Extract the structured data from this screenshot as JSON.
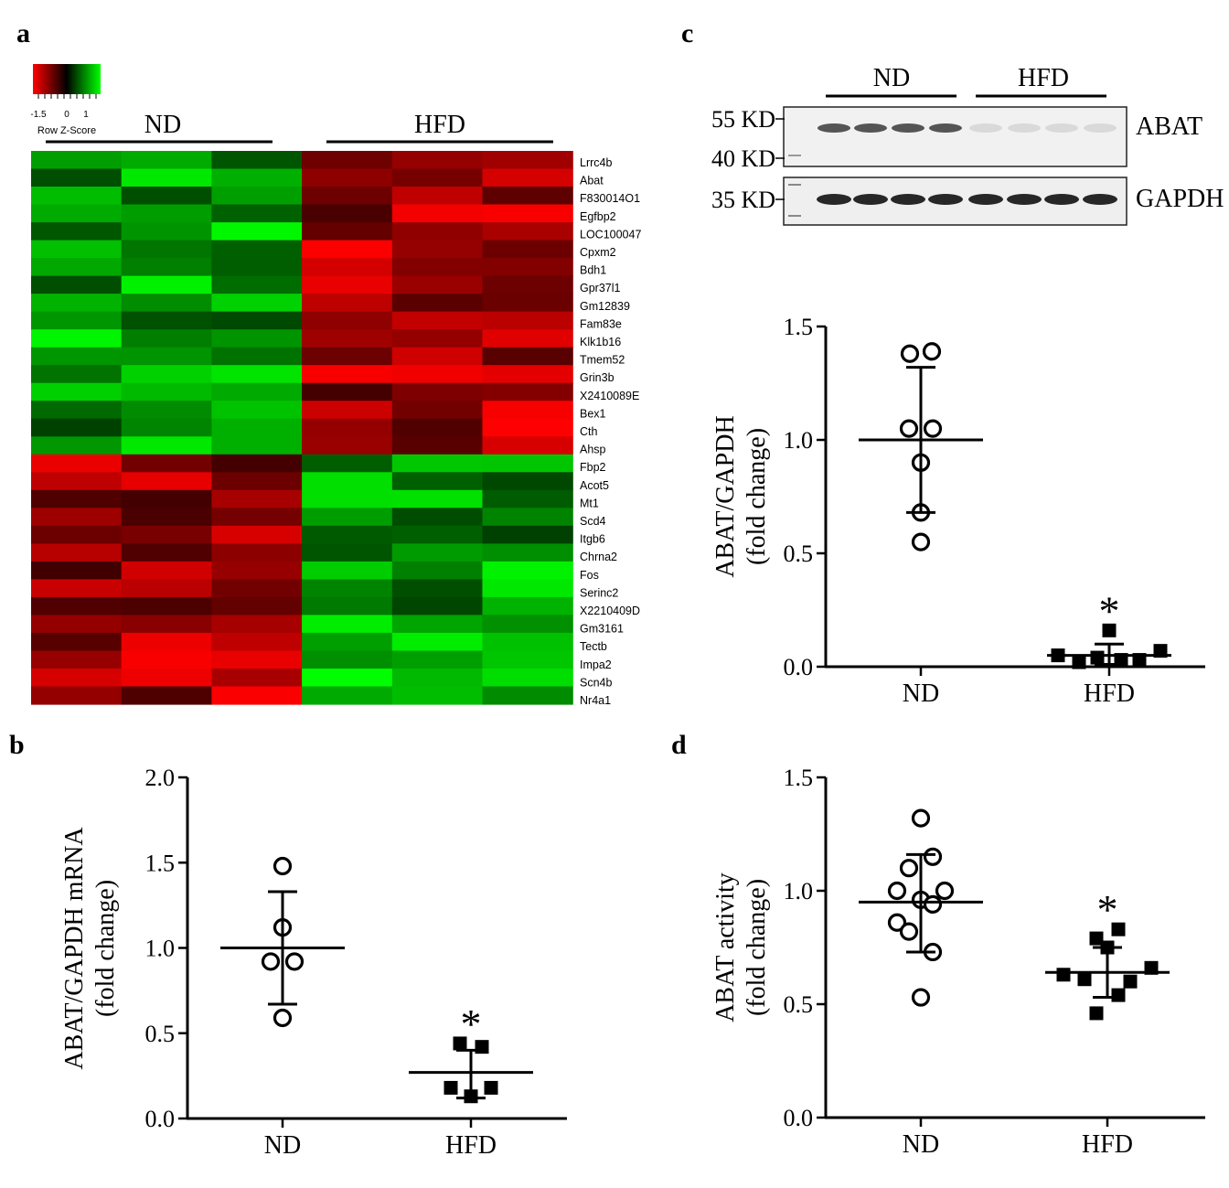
{
  "figure": {
    "panel_labels": [
      "a",
      "b",
      "c",
      "d"
    ]
  },
  "colors": {
    "red": "#ff0000",
    "black": "#000000",
    "green": "#00ff00"
  },
  "chart_data": [
    {
      "panel": "a",
      "type": "heatmap",
      "title": "",
      "color_key": {
        "label": "Row Z-Score",
        "ticks": [
          "-1.5",
          "0",
          "1"
        ]
      },
      "groups": [
        {
          "label": "ND",
          "columns": 3
        },
        {
          "label": "HFD",
          "columns": 3
        }
      ],
      "rows": [
        "Lrrc4b",
        "Abat",
        "F830014O1",
        "Egfbp2",
        "LOC100047",
        "Cpxm2",
        "Bdh1",
        "Gpr37l1",
        "Gm12839",
        "Fam83e",
        "Klk1b16",
        "Tmem52",
        "Grin3b",
        "X2410089E",
        "Bex1",
        "Cth",
        "Ahsp",
        "Fbp2",
        "Acot5",
        "Mt1",
        "Scd4",
        "Itgb6",
        "Chrna2",
        "Fos",
        "Serinc2",
        "X2210409D",
        "Gm3161",
        "Tectb",
        "Impa2",
        "Scn4b",
        "Nr4a1"
      ],
      "pattern": "First 17 genes high (red) in HFD and low (green) in ND; last 14 genes high (red) in ND and low (green) in HFD"
    },
    {
      "panel": "b",
      "type": "scatter",
      "title": "",
      "xlabel": "",
      "ylabel_lines": [
        "ABAT/GAPDH mRNA",
        "(fold change)"
      ],
      "ylim": [
        0,
        2.0
      ],
      "yticks": [
        "0.0",
        "0.5",
        "1.0",
        "1.5",
        "2.0"
      ],
      "categories": [
        "ND",
        "HFD"
      ],
      "series": [
        {
          "name": "ND",
          "marker": "open-circle",
          "values": [
            1.48,
            1.12,
            0.92,
            0.92,
            0.59
          ],
          "mean": 1.0,
          "sd_low": 0.67,
          "sd_high": 1.33
        },
        {
          "name": "HFD",
          "marker": "filled-square",
          "values": [
            0.44,
            0.42,
            0.18,
            0.18,
            0.13
          ],
          "mean": 0.27,
          "sd_low": 0.12,
          "sd_high": 0.4,
          "annotation": "*"
        }
      ]
    },
    {
      "panel": "c",
      "type": "scatter",
      "title": "",
      "xlabel": "",
      "ylabel_lines": [
        "ABAT/GAPDH",
        "(fold change)"
      ],
      "ylim": [
        0,
        1.5
      ],
      "yticks": [
        "0.0",
        "0.5",
        "1.0",
        "1.5"
      ],
      "categories": [
        "ND",
        "HFD"
      ],
      "series": [
        {
          "name": "ND",
          "marker": "open-circle",
          "values": [
            1.39,
            1.38,
            1.05,
            1.05,
            0.9,
            0.68,
            0.55
          ],
          "mean": 1.0,
          "sd_low": 0.68,
          "sd_high": 1.32
        },
        {
          "name": "HFD",
          "marker": "filled-square",
          "values": [
            0.16,
            0.07,
            0.05,
            0.04,
            0.03,
            0.03,
            0.02
          ],
          "mean": 0.05,
          "sd_low": 0.01,
          "sd_high": 0.1,
          "annotation": "*"
        }
      ],
      "western_blot": {
        "group_labels": [
          "ND",
          "HFD"
        ],
        "lanes_per_group": 4,
        "markers": [
          "55 KD",
          "40 KD",
          "35 KD"
        ],
        "bands": [
          "ABAT",
          "GAPDH"
        ]
      }
    },
    {
      "panel": "d",
      "type": "scatter",
      "title": "",
      "xlabel": "",
      "ylabel_lines": [
        "ABAT activity",
        "(fold change)"
      ],
      "ylim": [
        0,
        1.5
      ],
      "yticks": [
        "0.0",
        "0.5",
        "1.0",
        "1.5"
      ],
      "categories": [
        "ND",
        "HFD"
      ],
      "series": [
        {
          "name": "ND",
          "marker": "open-circle",
          "values": [
            1.32,
            1.15,
            1.1,
            1.0,
            1.0,
            0.96,
            0.94,
            0.86,
            0.82,
            0.73,
            0.53
          ],
          "mean": 0.95,
          "sd_low": 0.73,
          "sd_high": 1.16
        },
        {
          "name": "HFD",
          "marker": "filled-square",
          "values": [
            0.83,
            0.79,
            0.75,
            0.66,
            0.63,
            0.61,
            0.6,
            0.54,
            0.46
          ],
          "mean": 0.64,
          "sd_low": 0.53,
          "sd_high": 0.75,
          "annotation": "*"
        }
      ]
    }
  ]
}
